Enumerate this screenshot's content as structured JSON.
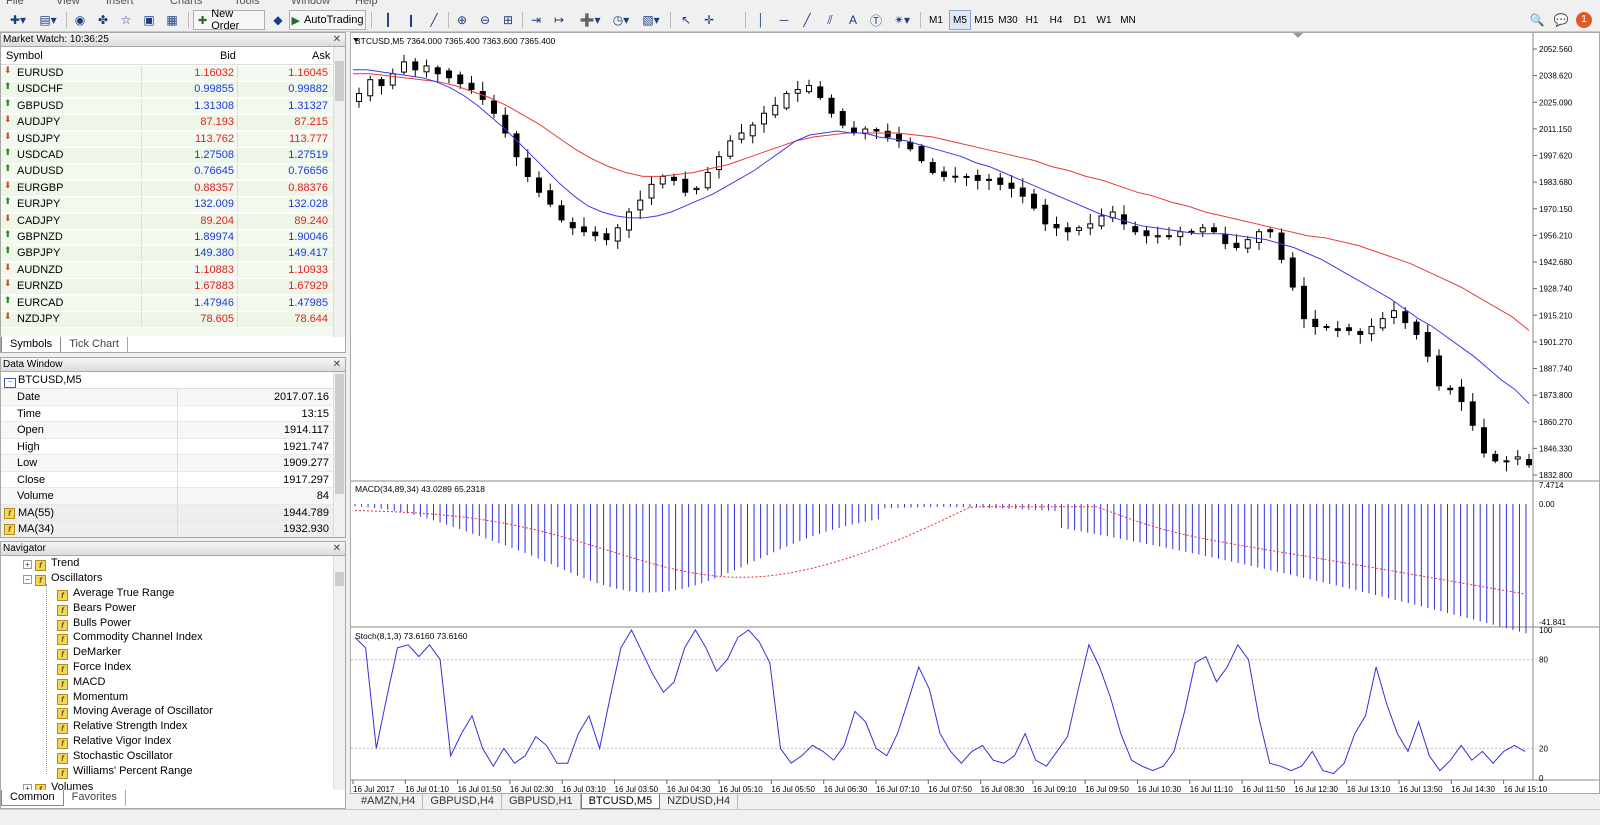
{
  "menu": [
    "File",
    "View",
    "Insert",
    "Charts",
    "Tools",
    "Window",
    "Help"
  ],
  "toolbar": {
    "new_order": "New Order",
    "auto_trading": "AutoTrading",
    "timeframes": [
      "M1",
      "M5",
      "M15",
      "M30",
      "H1",
      "H4",
      "D1",
      "W1",
      "MN"
    ],
    "active_timeframe": "M5",
    "text_tool": "A",
    "notification_count": "1"
  },
  "market_watch": {
    "title": "Market Watch: 10:36:25",
    "headers": {
      "symbol": "Symbol",
      "bid": "Bid",
      "ask": "Ask"
    },
    "rows": [
      {
        "symbol": "EURUSD",
        "bid": "1.16032",
        "ask": "1.16045",
        "dir": "down"
      },
      {
        "symbol": "USDCHF",
        "bid": "0.99855",
        "ask": "0.99882",
        "dir": "up"
      },
      {
        "symbol": "GBPUSD",
        "bid": "1.31308",
        "ask": "1.31327",
        "dir": "up"
      },
      {
        "symbol": "AUDJPY",
        "bid": "87.193",
        "ask": "87.215",
        "dir": "down"
      },
      {
        "symbol": "USDJPY",
        "bid": "113.762",
        "ask": "113.777",
        "dir": "down"
      },
      {
        "symbol": "USDCAD",
        "bid": "1.27508",
        "ask": "1.27519",
        "dir": "up"
      },
      {
        "symbol": "AUDUSD",
        "bid": "0.76645",
        "ask": "0.76656",
        "dir": "up"
      },
      {
        "symbol": "EURGBP",
        "bid": "0.88357",
        "ask": "0.88376",
        "dir": "down"
      },
      {
        "symbol": "EURJPY",
        "bid": "132.009",
        "ask": "132.028",
        "dir": "up"
      },
      {
        "symbol": "CADJPY",
        "bid": "89.204",
        "ask": "89.240",
        "dir": "down"
      },
      {
        "symbol": "GBPNZD",
        "bid": "1.89974",
        "ask": "1.90046",
        "dir": "up"
      },
      {
        "symbol": "GBPJPY",
        "bid": "149.380",
        "ask": "149.417",
        "dir": "up"
      },
      {
        "symbol": "AUDNZD",
        "bid": "1.10883",
        "ask": "1.10933",
        "dir": "down"
      },
      {
        "symbol": "EURNZD",
        "bid": "1.67883",
        "ask": "1.67929",
        "dir": "down"
      },
      {
        "symbol": "EURCAD",
        "bid": "1.47946",
        "ask": "1.47985",
        "dir": "up"
      },
      {
        "symbol": "NZDJPY",
        "bid": "78.605",
        "ask": "78.644",
        "dir": "down"
      }
    ],
    "tabs": [
      "Symbols",
      "Tick Chart"
    ]
  },
  "data_window": {
    "title": "Data Window",
    "chart": "BTCUSD,M5",
    "rows": [
      {
        "label": "Date",
        "value": "2017.07.16"
      },
      {
        "label": "Time",
        "value": "13:15"
      },
      {
        "label": "Open",
        "value": "1914.117"
      },
      {
        "label": "High",
        "value": "1921.747"
      },
      {
        "label": "Low",
        "value": "1909.277"
      },
      {
        "label": "Close",
        "value": "1917.297"
      },
      {
        "label": "Volume",
        "value": "84"
      },
      {
        "label": "MA(55)",
        "value": "1944.789",
        "icon": true
      },
      {
        "label": "MA(34)",
        "value": "1932.930",
        "icon": true
      }
    ]
  },
  "navigator": {
    "title": "Navigator",
    "trend": "Trend",
    "oscillators": "Oscillators",
    "items": [
      "Average True Range",
      "Bears Power",
      "Bulls Power",
      "Commodity Channel Index",
      "DeMarker",
      "Force Index",
      "MACD",
      "Momentum",
      "Moving Average of Oscillator",
      "Relative Strength Index",
      "Relative Vigor Index",
      "Stochastic Oscillator",
      "Williams' Percent Range"
    ],
    "volumes": "Volumes",
    "tabs": [
      "Common",
      "Favorites"
    ]
  },
  "chart": {
    "header": "BTCUSD,M5  7364.000 7365.400 7363.600 7365.400",
    "macd_label": "MACD(34,89,34) 43.0289 65.2318",
    "stoch_label": "Stoch(8,1,3) 73.6160 73.6160",
    "price_ticks": [
      "2052.560",
      "2038.620",
      "2025.090",
      "2011.150",
      "1997.620",
      "1983.680",
      "1970.150",
      "1956.210",
      "1942.680",
      "1928.740",
      "1915.210",
      "1901.270",
      "1887.740",
      "1873.800",
      "1860.270",
      "1846.330",
      "1832.800"
    ],
    "macd_ticks": [
      "7.4714",
      "0.00",
      "-41.841"
    ],
    "stoch_ticks": [
      "100",
      "80",
      "20",
      "0"
    ],
    "time_ticks": [
      "16 Jul 2017",
      "16 Jul 01:10",
      "16 Jul 01:50",
      "16 Jul 02:30",
      "16 Jul 03:10",
      "16 Jul 03:50",
      "16 Jul 04:30",
      "16 Jul 05:10",
      "16 Jul 05:50",
      "16 Jul 06:30",
      "16 Jul 07:10",
      "16 Jul 07:50",
      "16 Jul 08:30",
      "16 Jul 09:10",
      "16 Jul 09:50",
      "16 Jul 10:30",
      "16 Jul 11:10",
      "16 Jul 11:50",
      "16 Jul 12:30",
      "16 Jul 13:10",
      "16 Jul 13:50",
      "16 Jul 14:30",
      "16 Jul 15:10"
    ],
    "tabs": [
      "#AMZN,H4",
      "GBPUSD,H4",
      "GBPUSD,H1",
      "BTCUSD,M5",
      "NZDUSD,H4"
    ],
    "active_tab": "BTCUSD,M5",
    "colors": {
      "ma_fast": "#3a3ae8",
      "ma_slow": "#e83a3a",
      "macd_hist": "#3030dd",
      "macd_signal": "#e83030",
      "stoch": "#3030dd"
    }
  },
  "chart_data": {
    "type": "candlestick",
    "symbol": "BTCUSD",
    "timeframe": "M5",
    "ylim": [
      1832.8,
      2052.56
    ],
    "close": [
      2028,
      2035,
      2032,
      2038,
      2044,
      2040,
      2042,
      2038,
      2036,
      2033,
      2030,
      2025,
      2018,
      2008,
      1996,
      1986,
      1978,
      1972,
      1964,
      1960,
      1958,
      1956,
      1954,
      1960,
      1968,
      1974,
      1982,
      1986,
      1984,
      1978,
      1980,
      1988,
      1996,
      2004,
      2008,
      2012,
      2018,
      2022,
      2028,
      2030,
      2032,
      2026,
      2018,
      2012,
      2008,
      2010,
      2009,
      2006,
      2004,
      2000,
      1994,
      1988,
      1986,
      1986,
      1986,
      1984,
      1984,
      1982,
      1980,
      1976,
      1970,
      1962,
      1960,
      1958,
      1960,
      1962,
      1966,
      1968,
      1962,
      1958,
      1956,
      1956,
      1956,
      1958,
      1958,
      1960,
      1958,
      1952,
      1950,
      1954,
      1958,
      1958,
      1944,
      1930,
      1914,
      1910,
      1910,
      1908,
      1908,
      1906,
      1910,
      1914,
      1918,
      1912,
      1906,
      1895,
      1880,
      1878,
      1872,
      1860,
      1846,
      1842,
      1842,
      1844,
      1840
    ],
    "ma_fast": [
      2040,
      2040,
      2039,
      2038,
      2037,
      2036,
      2034,
      2031,
      2027,
      2022,
      2016,
      2010,
      2003,
      1996,
      1989,
      1982,
      1976,
      1971,
      1968,
      1966,
      1965,
      1965,
      1966,
      1968,
      1971,
      1974,
      1977,
      1981,
      1985,
      1989,
      1994,
      1999,
      2004,
      2007,
      2008,
      2009,
      2008,
      2008,
      2006,
      2005,
      2004,
      2002,
      2000,
      1998,
      1996,
      1993,
      1991,
      1988,
      1985,
      1982,
      1979,
      1976,
      1973,
      1970,
      1967,
      1965,
      1963,
      1961,
      1960,
      1959,
      1958,
      1957,
      1957,
      1957,
      1956,
      1955,
      1954,
      1952,
      1950,
      1947,
      1944,
      1940,
      1936,
      1932,
      1928,
      1924,
      1919,
      1914,
      1910,
      1905,
      1900,
      1895,
      1889,
      1883,
      1878,
      1871
    ],
    "ma_slow": [
      2038,
      2038,
      2037,
      2036,
      2035,
      2034,
      2032,
      2029,
      2026,
      2022,
      2017,
      2012,
      2006,
      2000,
      1995,
      1991,
      1988,
      1986,
      1986,
      1987,
      1988,
      1990,
      1992,
      1995,
      1998,
      2001,
      2004,
      2006,
      2007,
      2008,
      2008,
      2008,
      2008,
      2007,
      2006,
      2004,
      2002,
      2000,
      1998,
      1996,
      1994,
      1991,
      1989,
      1986,
      1984,
      1981,
      1978,
      1976,
      1973,
      1971,
      1968,
      1966,
      1964,
      1962,
      1960,
      1958,
      1956,
      1955,
      1953,
      1951,
      1948,
      1945,
      1942,
      1938,
      1934,
      1930,
      1925,
      1920,
      1915,
      1908
    ],
    "stoch": [
      95,
      88,
      20,
      55,
      88,
      90,
      82,
      90,
      80,
      15,
      30,
      42,
      20,
      8,
      20,
      10,
      15,
      28,
      22,
      10,
      10,
      30,
      42,
      20,
      55,
      88,
      100,
      85,
      70,
      58,
      65,
      88,
      100,
      88,
      72,
      80,
      95,
      100,
      92,
      78,
      20,
      10,
      15,
      22,
      18,
      12,
      22,
      45,
      38,
      20,
      15,
      30,
      52,
      75,
      60,
      30,
      18,
      10,
      18,
      22,
      12,
      10,
      15,
      30,
      12,
      8,
      18,
      28,
      60,
      90,
      75,
      55,
      30,
      12,
      8,
      5,
      8,
      18,
      45,
      78,
      82,
      65,
      75,
      90,
      80,
      40,
      10,
      8,
      5,
      8,
      18,
      5,
      3,
      10,
      30,
      42,
      75,
      50,
      30,
      18,
      38,
      15,
      5,
      12,
      22,
      12,
      18,
      10,
      18,
      22,
      18
    ]
  }
}
